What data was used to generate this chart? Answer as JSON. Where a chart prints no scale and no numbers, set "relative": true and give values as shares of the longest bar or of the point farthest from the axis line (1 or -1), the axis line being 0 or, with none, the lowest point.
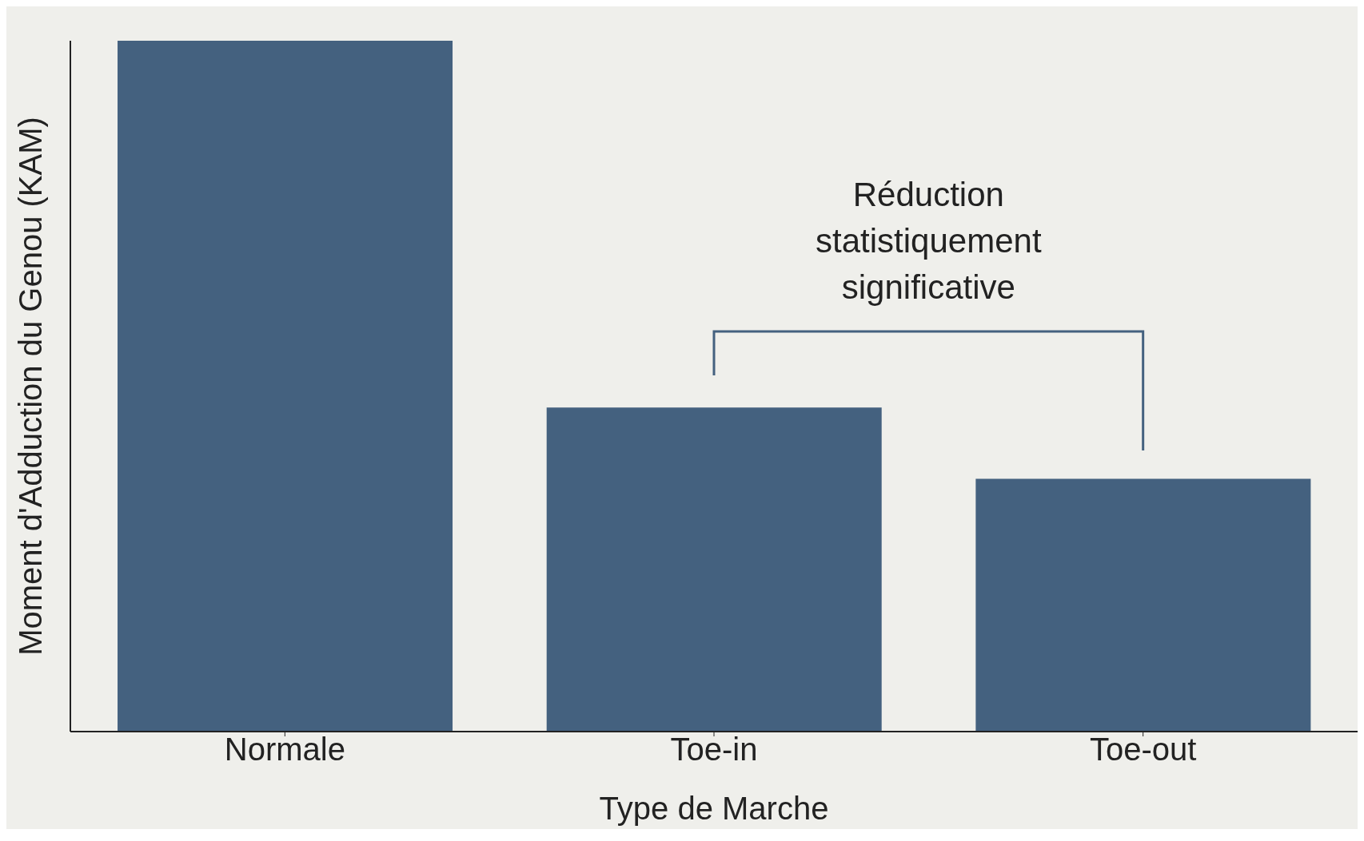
{
  "chart_data": {
    "type": "bar",
    "relative": true,
    "xlabel": "Type de Marche",
    "ylabel": "Moment d'Adduction du Genou (KAM)",
    "categories": [
      "Normale",
      "Toe-in",
      "Toe-out"
    ],
    "values": [
      1,
      0.469,
      0.366
    ],
    "color": "#44617f",
    "annotations": [
      "Réduction statistiquement significative"
    ]
  }
}
